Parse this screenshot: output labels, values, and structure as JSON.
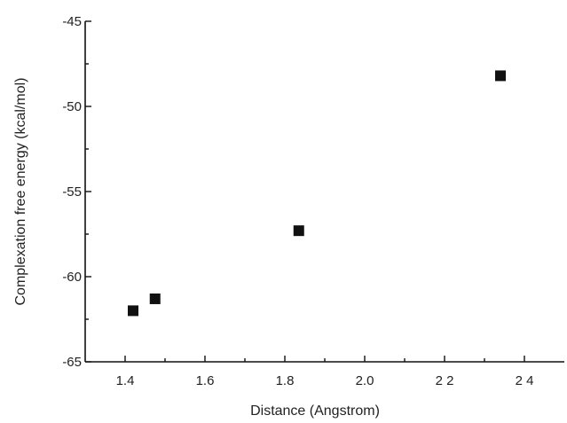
{
  "chart_data": {
    "type": "scatter",
    "title": "",
    "xlabel": "Distance (Angstrom)",
    "ylabel": "Complexation free energy (kcal/mol)",
    "xlim": [
      1.3,
      2.5
    ],
    "ylim": [
      -65,
      -45
    ],
    "xticks": [
      1.4,
      1.6,
      1.8,
      2.0,
      2.2,
      2.4
    ],
    "xtick_labels": [
      "1.4",
      "1.6",
      "1.8",
      "2.0",
      "2 2",
      "2 4"
    ],
    "yticks": [
      -65,
      -60,
      -55,
      -50,
      -45
    ],
    "ytick_labels": [
      "-65",
      "-60",
      "-55",
      "-50",
      "-45"
    ],
    "grid": false,
    "marker": "square",
    "marker_color": "#111111",
    "points": [
      {
        "x": 1.42,
        "y": -62.0
      },
      {
        "x": 1.475,
        "y": -61.3
      },
      {
        "x": 1.835,
        "y": -57.3
      },
      {
        "x": 2.34,
        "y": -48.2
      }
    ]
  }
}
